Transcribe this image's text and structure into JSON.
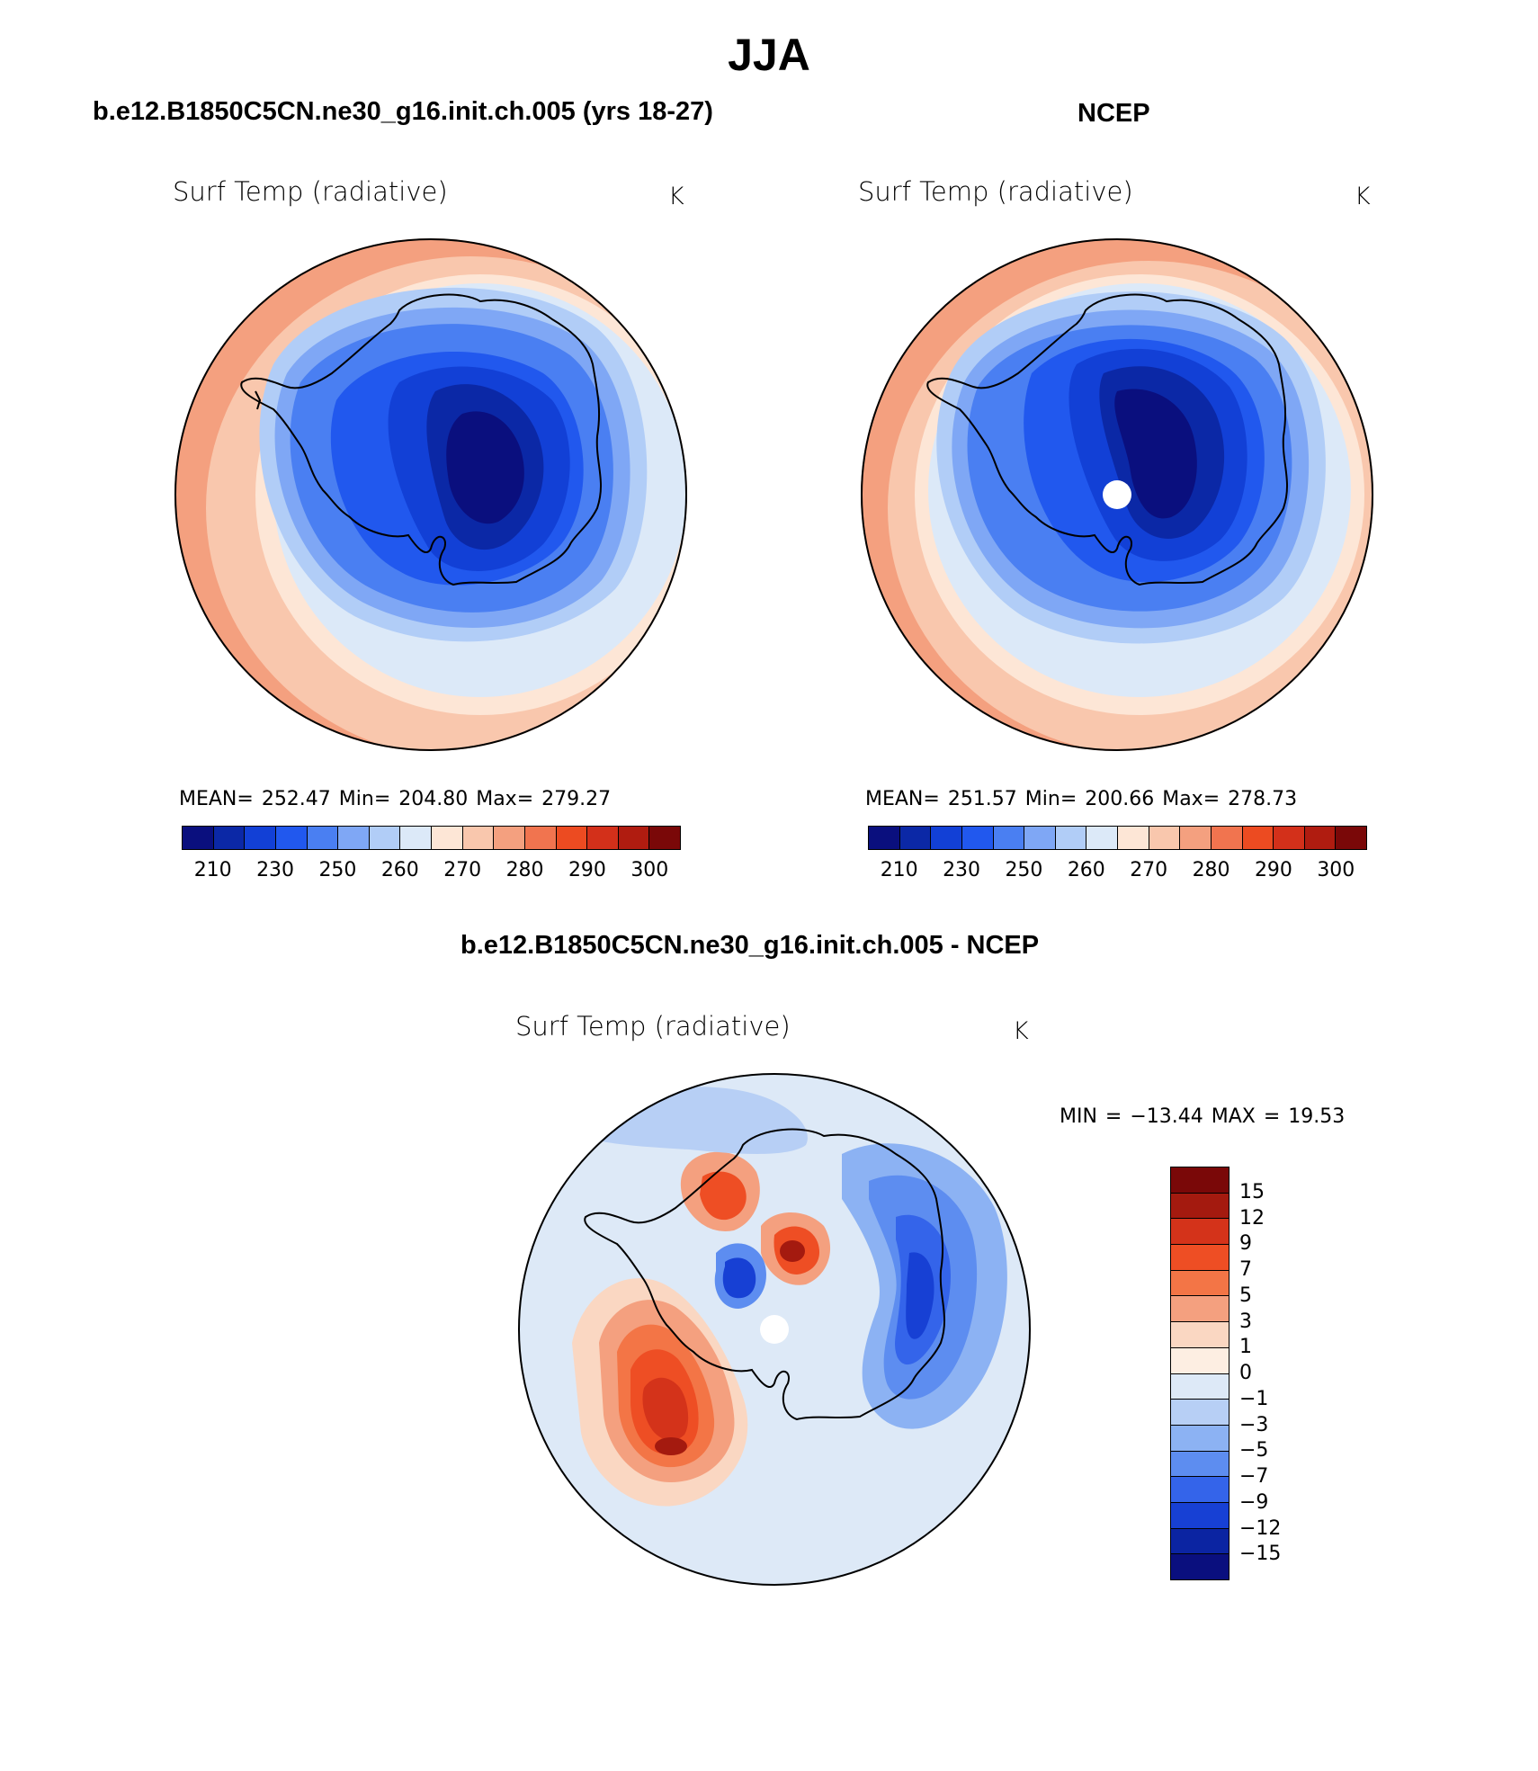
{
  "title": "JJA",
  "panels": {
    "left": {
      "subtitle": "b.e12.B1850C5CN.ne30_g16.init.ch.005 (yrs 18-27)",
      "variable": "Surf Temp (radiative)",
      "units": "K",
      "stats": "MEAN= 252.47   Min= 204.80   Max= 279.27"
    },
    "right": {
      "subtitle": "NCEP",
      "variable": "Surf Temp (radiative)",
      "units": "K",
      "stats": "MEAN= 251.57   Min= 200.66   Max= 278.73"
    },
    "diff": {
      "subtitle": "b.e12.B1850C5CN.ne30_g16.init.ch.005 - NCEP",
      "variable": "Surf Temp (radiative)",
      "units": "K",
      "stats": "MIN = −13.44 MAX =   19.53"
    }
  },
  "colorbar_abs": {
    "colors": [
      "#0a0f7e",
      "#0b28a6",
      "#1240d6",
      "#2158ee",
      "#4a7ff2",
      "#7fa7f5",
      "#b1cdf7",
      "#dce9f8",
      "#fde6d6",
      "#f9c7ad",
      "#f4a07f",
      "#f1744f",
      "#ec4b21",
      "#d3301a",
      "#b01c10",
      "#7a0808"
    ],
    "labels": [
      "210",
      "230",
      "250",
      "260",
      "270",
      "280",
      "290",
      "300"
    ]
  },
  "colorbar_diff": {
    "colors": [
      "#7a0808",
      "#a41a0f",
      "#d4331a",
      "#ee4e24",
      "#f37546",
      "#f4a07f",
      "#fad7c2",
      "#fdeee2",
      "#dde9f7",
      "#b7cff5",
      "#8cb2f3",
      "#5d8df0",
      "#3464ea",
      "#1740d4",
      "#0b24a2",
      "#0a0f7e"
    ],
    "labels": [
      "15",
      "12",
      "9",
      "7",
      "5",
      "3",
      "1",
      "0",
      "−1",
      "−3",
      "−5",
      "−7",
      "−9",
      "−12",
      "−15"
    ]
  }
}
